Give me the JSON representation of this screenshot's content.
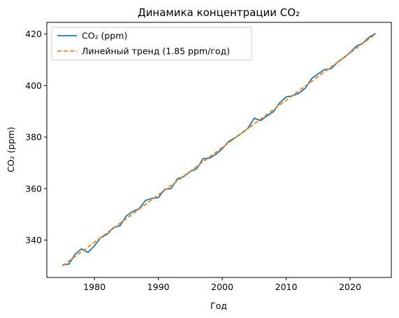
{
  "chart_data": {
    "type": "line",
    "title": "Динамика концентрации CO₂",
    "xlabel": "Год",
    "ylabel": "CO₂ (ppm)",
    "xlim": [
      1972.55,
      2026.45
    ],
    "ylim": [
      325.5,
      424.5
    ],
    "xticks": [
      1980,
      1990,
      2000,
      2010,
      2020
    ],
    "yticks": [
      340,
      360,
      380,
      400,
      420
    ],
    "grid": false,
    "legend_position": "upper left",
    "series": [
      {
        "name": "CO₂ (ppm)",
        "style": "solid",
        "color": "#1f77b4",
        "x": [
          1975,
          1976,
          1977,
          1978,
          1979,
          1980,
          1981,
          1982,
          1983,
          1984,
          1985,
          1986,
          1987,
          1988,
          1989,
          1990,
          1991,
          1992,
          1993,
          1994,
          1995,
          1996,
          1997,
          1998,
          1999,
          2000,
          2001,
          2002,
          2003,
          2004,
          2005,
          2006,
          2007,
          2008,
          2009,
          2010,
          2011,
          2012,
          2013,
          2014,
          2015,
          2016,
          2017,
          2018,
          2019,
          2020,
          2021,
          2022,
          2023,
          2024
        ],
        "values": [
          330.4,
          330.7,
          334.6,
          336.6,
          335.2,
          337.8,
          341.0,
          342.3,
          344.9,
          345.6,
          349.4,
          351.1,
          352.2,
          355.4,
          356.2,
          356.5,
          359.7,
          360.0,
          363.8,
          364.7,
          366.6,
          367.7,
          371.6,
          371.8,
          373.3,
          375.5,
          378.3,
          379.7,
          381.4,
          383.3,
          387.3,
          386.4,
          388.2,
          389.8,
          393.3,
          395.6,
          396.0,
          397.0,
          399.0,
          402.7,
          404.5,
          406.2,
          406.5,
          408.9,
          410.8,
          412.8,
          415.3,
          416.4,
          418.8,
          420.2
        ]
      },
      {
        "name": "Линейный тренд (1.85 ppm/год)",
        "style": "dashed",
        "color": "#ff7f0e",
        "x": [
          1975,
          2024
        ],
        "values": [
          330.0,
          420.0
        ]
      }
    ]
  }
}
